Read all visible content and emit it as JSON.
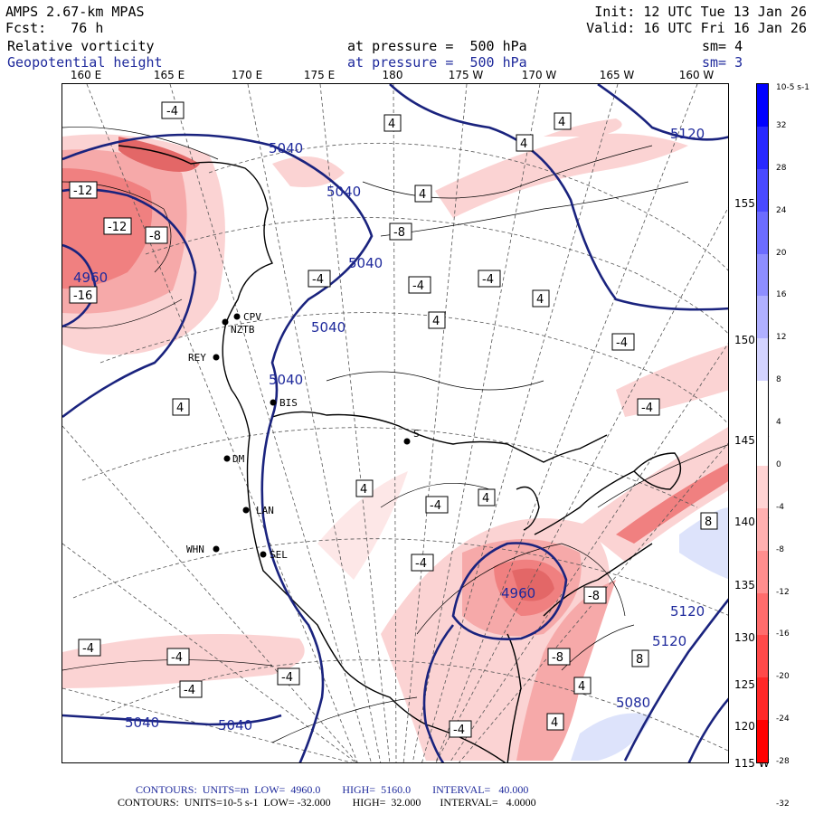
{
  "header": {
    "model": "AMPS 2.67-km MPAS",
    "forecast": "Fcst:   76 h",
    "init": "Init: 12 UTC Tue 13 Jan 26",
    "valid": "Valid: 16 UTC Fri 16 Jan 26",
    "field1": {
      "name": "Relative vorticity",
      "level": "at pressure =  500 hPa",
      "smooth": "sm= 4"
    },
    "field2": {
      "name": "Geopotential height",
      "level": "at pressure =  500 hPa",
      "smooth": "sm= 3"
    }
  },
  "longitude_labels": [
    "160 E",
    "165 E",
    "170 E",
    "175 E",
    "180",
    "175 W",
    "170 W",
    "165 W",
    "160 W"
  ],
  "latitude_labels": [
    "155 W",
    "150 W",
    "145 W",
    "140 W",
    "135 W",
    "130 W",
    "125 W",
    "120 W",
    "115 W"
  ],
  "stations": [
    "CPV",
    "NZTB",
    "REY",
    "BIS",
    "DM",
    "LAN",
    "WHN",
    "SEL",
    "S"
  ],
  "height_contour_labels": [
    "5040",
    "5040",
    "5040",
    "5040",
    "5040",
    "4960",
    "5040",
    "5040",
    "5120",
    "5120",
    "5120",
    "5080",
    "4960"
  ],
  "vorticity_contour_labels": [
    "-4",
    "-12",
    "-12",
    "-8",
    "-16",
    "-8",
    "-4",
    "4",
    "8"
  ],
  "colorbar": {
    "unit": "10-5 s-1",
    "ticks": [
      "32",
      "28",
      "24",
      "20",
      "16",
      "12",
      "8",
      "4",
      "0",
      "-4",
      "-8",
      "-12",
      "-16",
      "-20",
      "-24",
      "-28",
      "-32"
    ],
    "colors": [
      "#0000ff",
      "#2828ff",
      "#4a4aff",
      "#6c6cff",
      "#8e8eff",
      "#b0b0ff",
      "#d4d4ff",
      "#ffffff",
      "#ffffff",
      "#ffd4d4",
      "#ffb0b0",
      "#ff8e8e",
      "#ff6c6c",
      "#ff4a4a",
      "#ff2828",
      "#ff0000"
    ]
  },
  "footer": {
    "line1": "CONTOURS:  UNITS=m  LOW=  4960.0        HIGH=  5160.0        INTERVAL=   40.000",
    "line2": "CONTOURS:  UNITS=10-5 s-1  LOW= -32.000        HIGH=  32.000       INTERVAL=   4.0000"
  },
  "colors": {
    "height_contour": "#1a237e",
    "negative_vorticity": "#f08080",
    "positive_vorticity": "#9aa7f0",
    "coast": "#000000"
  }
}
